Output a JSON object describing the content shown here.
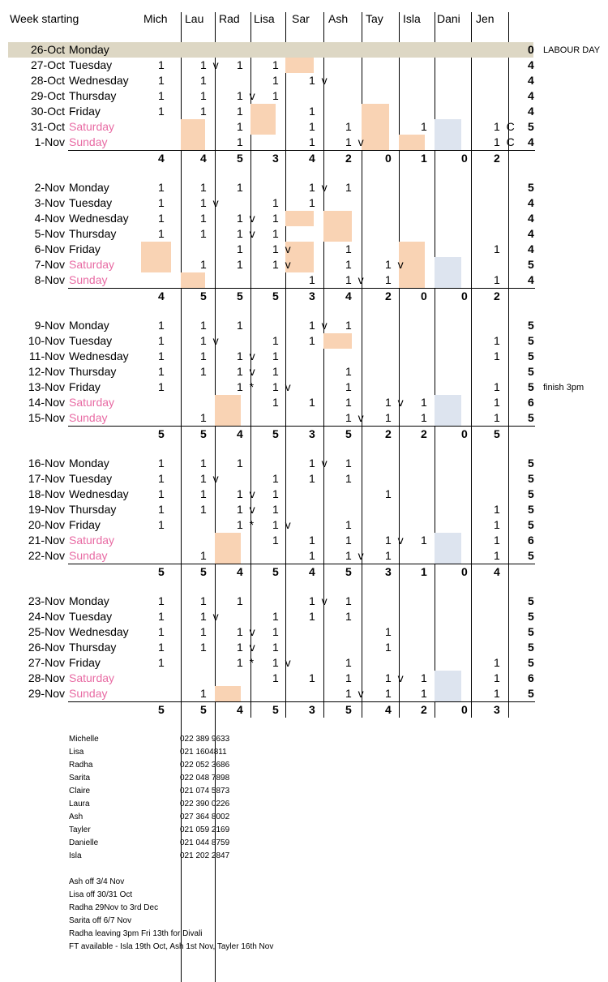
{
  "header": {
    "week_starting": "Week starting",
    "staff": [
      "Mich",
      "Lau",
      "Rad",
      "Lisa",
      "Sar",
      "Ash",
      "Tay",
      "Isla",
      "Dani",
      "Jen"
    ]
  },
  "colors": {
    "weekend_text": "#e86aa3",
    "peach": "#f9d3b4",
    "blue": "#dde4ef",
    "holiday": "#ddd7c4"
  },
  "weeks": [
    {
      "rows": [
        {
          "date": "26-Oct",
          "day": "Monday",
          "weekend": false,
          "holiday": true,
          "cells": [
            "",
            "",
            "",
            "",
            "",
            "",
            "",
            "",
            "",
            ""
          ],
          "total": "0",
          "note": "LABOUR DAY"
        },
        {
          "date": "27-Oct",
          "day": "Tuesday",
          "weekend": false,
          "cells": [
            "1",
            "1  v",
            "1",
            "1",
            "",
            "",
            "",
            "",
            "",
            ""
          ],
          "total": "4",
          "note": ""
        },
        {
          "date": "28-Oct",
          "day": "Wednesday",
          "weekend": false,
          "cells": [
            "1",
            "1",
            "",
            "1",
            "1  v",
            "",
            "",
            "",
            "",
            ""
          ],
          "total": "4",
          "note": ""
        },
        {
          "date": "29-Oct",
          "day": "Thursday",
          "weekend": false,
          "cells": [
            "1",
            "1",
            "1  v",
            "1",
            "",
            "",
            "",
            "",
            "",
            ""
          ],
          "total": "4",
          "note": ""
        },
        {
          "date": "30-Oct",
          "day": "Friday",
          "weekend": false,
          "cells": [
            "1",
            "1",
            "1",
            "",
            "1",
            "",
            "",
            "",
            "",
            ""
          ],
          "total": "4",
          "note": ""
        },
        {
          "date": "31-Oct",
          "day": "Saturday",
          "weekend": true,
          "cells": [
            "",
            "",
            "1",
            "",
            "1",
            "1",
            "",
            "1",
            "",
            "1  C"
          ],
          "total": "5",
          "note": ""
        },
        {
          "date": "1-Nov",
          "day": "Sunday",
          "weekend": true,
          "cells": [
            "",
            "",
            "1",
            "",
            "1",
            "1  v",
            "",
            "",
            "",
            "1  C"
          ],
          "total": "4",
          "note": ""
        }
      ],
      "totals": [
        "4",
        "4",
        "5",
        "3",
        "4",
        "2",
        "0",
        "1",
        "0",
        "2"
      ]
    },
    {
      "rows": [
        {
          "date": "2-Nov",
          "day": "Monday",
          "weekend": false,
          "cells": [
            "1",
            "1",
            "1",
            "",
            "1  v",
            "1",
            "",
            "",
            "",
            ""
          ],
          "total": "5",
          "note": ""
        },
        {
          "date": "3-Nov",
          "day": "Tuesday",
          "weekend": false,
          "cells": [
            "1",
            "1  v",
            "",
            "1",
            "1",
            "",
            "",
            "",
            "",
            ""
          ],
          "total": "4",
          "note": ""
        },
        {
          "date": "4-Nov",
          "day": "Wednesday",
          "weekend": false,
          "cells": [
            "1",
            "1",
            "1  v",
            "1",
            "",
            "",
            "",
            "",
            "",
            ""
          ],
          "total": "4",
          "note": ""
        },
        {
          "date": "5-Nov",
          "day": "Thursday",
          "weekend": false,
          "cells": [
            "1",
            "1",
            "1  v",
            "1",
            "",
            "",
            "",
            "",
            "",
            ""
          ],
          "total": "4",
          "note": ""
        },
        {
          "date": "6-Nov",
          "day": "Friday",
          "weekend": false,
          "cells": [
            "",
            "",
            "1",
            "1  v",
            "",
            "1",
            "",
            "",
            "",
            "1"
          ],
          "total": "4",
          "note": ""
        },
        {
          "date": "7-Nov",
          "day": "Saturday",
          "weekend": true,
          "cells": [
            "",
            "1",
            "1",
            "1  v",
            "",
            "1",
            "1  v",
            "",
            "",
            ""
          ],
          "total": "5",
          "note": ""
        },
        {
          "date": "8-Nov",
          "day": "Sunday",
          "weekend": true,
          "cells": [
            "",
            "",
            "",
            "",
            "1",
            "1  v",
            "1",
            "",
            "",
            "1"
          ],
          "total": "4",
          "note": ""
        }
      ],
      "totals": [
        "4",
        "5",
        "5",
        "5",
        "3",
        "4",
        "2",
        "0",
        "0",
        "2"
      ]
    },
    {
      "rows": [
        {
          "date": "9-Nov",
          "day": "Monday",
          "weekend": false,
          "cells": [
            "1",
            "1",
            "1",
            "",
            "1  v",
            "1",
            "",
            "",
            "",
            ""
          ],
          "total": "5",
          "note": ""
        },
        {
          "date": "10-Nov",
          "day": "Tuesday",
          "weekend": false,
          "cells": [
            "1",
            "1  v",
            "",
            "1",
            "1",
            "",
            "",
            "",
            "",
            "1"
          ],
          "total": "5",
          "note": ""
        },
        {
          "date": "11-Nov",
          "day": "Wednesday",
          "weekend": false,
          "cells": [
            "1",
            "1",
            "1  v",
            "1",
            "",
            "",
            "",
            "",
            "",
            "1"
          ],
          "total": "5",
          "note": ""
        },
        {
          "date": "12-Nov",
          "day": "Thursday",
          "weekend": false,
          "cells": [
            "1",
            "1",
            "1  v",
            "1",
            "",
            "1",
            "",
            "",
            "",
            ""
          ],
          "total": "5",
          "note": ""
        },
        {
          "date": "13-Nov",
          "day": "Friday",
          "weekend": false,
          "cells": [
            "1",
            "",
            "1  *",
            "1  v",
            "",
            "1",
            "",
            "",
            "",
            "1"
          ],
          "total": "5",
          "note": "finish 3pm"
        },
        {
          "date": "14-Nov",
          "day": "Saturday",
          "weekend": true,
          "cells": [
            "",
            "",
            "",
            "1",
            "1",
            "1",
            "1  v",
            "1",
            "",
            "1"
          ],
          "total": "6",
          "note": ""
        },
        {
          "date": "15-Nov",
          "day": "Sunday",
          "weekend": true,
          "cells": [
            "",
            "1",
            "",
            "",
            "",
            "1  v",
            "1",
            "1",
            "",
            "1"
          ],
          "total": "5",
          "note": ""
        }
      ],
      "totals": [
        "5",
        "5",
        "4",
        "5",
        "3",
        "5",
        "2",
        "2",
        "0",
        "5"
      ]
    },
    {
      "rows": [
        {
          "date": "16-Nov",
          "day": "Monday",
          "weekend": false,
          "cells": [
            "1",
            "1",
            "1",
            "",
            "1  v",
            "1",
            "",
            "",
            "",
            ""
          ],
          "total": "5",
          "note": ""
        },
        {
          "date": "17-Nov",
          "day": "Tuesday",
          "weekend": false,
          "cells": [
            "1",
            "1  v",
            "",
            "1",
            "1",
            "1",
            "",
            "",
            "",
            ""
          ],
          "total": "5",
          "note": ""
        },
        {
          "date": "18-Nov",
          "day": "Wednesday",
          "weekend": false,
          "cells": [
            "1",
            "1",
            "1  v",
            "1",
            "",
            "",
            "1",
            "",
            "",
            ""
          ],
          "total": "5",
          "note": ""
        },
        {
          "date": "19-Nov",
          "day": "Thursday",
          "weekend": false,
          "cells": [
            "1",
            "1",
            "1  v",
            "1",
            "",
            "",
            "",
            "",
            "",
            "1"
          ],
          "total": "5",
          "note": ""
        },
        {
          "date": "20-Nov",
          "day": "Friday",
          "weekend": false,
          "cells": [
            "1",
            "",
            "1  *",
            "1  v",
            "",
            "1",
            "",
            "",
            "",
            "1"
          ],
          "total": "5",
          "note": ""
        },
        {
          "date": "21-Nov",
          "day": "Saturday",
          "weekend": true,
          "cells": [
            "",
            "",
            "",
            "1",
            "1",
            "1",
            "1  v",
            "1",
            "",
            "1"
          ],
          "total": "6",
          "note": ""
        },
        {
          "date": "22-Nov",
          "day": "Sunday",
          "weekend": true,
          "cells": [
            "",
            "1",
            "",
            "",
            "1",
            "1  v",
            "1",
            "",
            "",
            "1"
          ],
          "total": "5",
          "note": ""
        }
      ],
      "totals": [
        "5",
        "5",
        "4",
        "5",
        "4",
        "5",
        "3",
        "1",
        "0",
        "4"
      ]
    },
    {
      "rows": [
        {
          "date": "23-Nov",
          "day": "Monday",
          "weekend": false,
          "cells": [
            "1",
            "1",
            "1",
            "",
            "1  v",
            "1",
            "",
            "",
            "",
            ""
          ],
          "total": "5",
          "note": ""
        },
        {
          "date": "24-Nov",
          "day": "Tuesday",
          "weekend": false,
          "cells": [
            "1",
            "1  v",
            "",
            "1",
            "1",
            "1",
            "",
            "",
            "",
            ""
          ],
          "total": "5",
          "note": ""
        },
        {
          "date": "25-Nov",
          "day": "Wednesday",
          "weekend": false,
          "cells": [
            "1",
            "1",
            "1  v",
            "1",
            "",
            "",
            "1",
            "",
            "",
            ""
          ],
          "total": "5",
          "note": ""
        },
        {
          "date": "26-Nov",
          "day": "Thursday",
          "weekend": false,
          "cells": [
            "1",
            "1",
            "1  v",
            "1",
            "",
            "",
            "1",
            "",
            "",
            ""
          ],
          "total": "5",
          "note": ""
        },
        {
          "date": "27-Nov",
          "day": "Friday",
          "weekend": false,
          "cells": [
            "1",
            "",
            "1  *",
            "1  v",
            "",
            "1",
            "",
            "",
            "",
            "1"
          ],
          "total": "5",
          "note": ""
        },
        {
          "date": "28-Nov",
          "day": "Saturday",
          "weekend": true,
          "cells": [
            "",
            "",
            "",
            "1",
            "1",
            "1",
            "1  v",
            "1",
            "",
            "1"
          ],
          "total": "6",
          "note": ""
        },
        {
          "date": "29-Nov",
          "day": "Sunday",
          "weekend": true,
          "cells": [
            "",
            "1",
            "",
            "",
            "",
            "1  v",
            "1",
            "1",
            "",
            "1"
          ],
          "total": "5",
          "note": ""
        }
      ],
      "totals": [
        "5",
        "5",
        "4",
        "5",
        "3",
        "5",
        "4",
        "2",
        "0",
        "3"
      ]
    }
  ],
  "contacts": [
    {
      "name": "Michelle",
      "phone": "022 389 9633"
    },
    {
      "name": "Lisa",
      "phone": "021 1604811"
    },
    {
      "name": "Radha",
      "phone": "022 052 3686"
    },
    {
      "name": "Sarita",
      "phone": "022 048 7898"
    },
    {
      "name": "Claire",
      "phone": "021 074 5873"
    },
    {
      "name": "Laura",
      "phone": "022 390 0226"
    },
    {
      "name": "Ash",
      "phone": "027 364 8002"
    },
    {
      "name": "Tayler",
      "phone": "021 059 2169"
    },
    {
      "name": "Danielle",
      "phone": "021 044 8759"
    },
    {
      "name": "Isla",
      "phone": "021 202 2847"
    }
  ],
  "notes": [
    "Ash off 3/4 Nov",
    "Lisa off 30/31 Oct",
    "Radha 29Nov to 3rd Dec",
    "Sarita off 6/7 Nov",
    "Radha leaving 3pm Fri 13th for Divali",
    "FT available - Isla 19th Oct, Ash 1st Nov, Tayler 16th Nov"
  ]
}
